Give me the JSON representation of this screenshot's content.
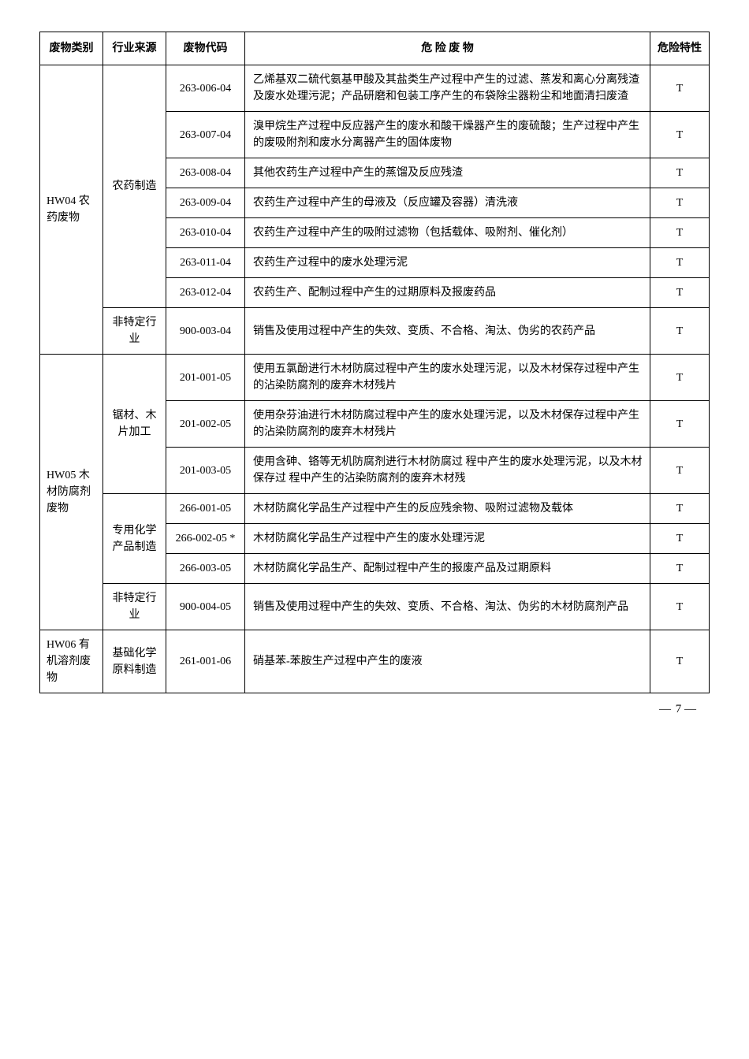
{
  "headers": {
    "category": "废物类别",
    "industry": "行业来源",
    "code": "废物代码",
    "description": "危 险 废 物",
    "hazard": "危险特性"
  },
  "groups": [
    {
      "category": "HW04 农药废物",
      "subgroups": [
        {
          "industry": "农药制造",
          "rows": [
            {
              "code": "263-006-04",
              "desc": "乙烯基双二硫代氨基甲酸及其盐类生产过程中产生的过滤、蒸发和离心分离残渣及废水处理污泥；产品研磨和包装工序产生的布袋除尘器粉尘和地面清扫废渣",
              "hazard": "T"
            },
            {
              "code": "263-007-04",
              "desc": "溴甲烷生产过程中反应器产生的废水和酸干燥器产生的废硫酸；生产过程中产生的废吸附剂和废水分离器产生的固体废物",
              "hazard": "T"
            },
            {
              "code": "263-008-04",
              "desc": "其他农药生产过程中产生的蒸馏及反应残渣",
              "hazard": "T"
            },
            {
              "code": "263-009-04",
              "desc": "农药生产过程中产生的母液及（反应罐及容器）清洗液",
              "hazard": "T"
            },
            {
              "code": "263-010-04",
              "desc": "农药生产过程中产生的吸附过滤物（包括载体、吸附剂、催化剂）",
              "hazard": "T"
            },
            {
              "code": "263-011-04",
              "desc": "农药生产过程中的废水处理污泥",
              "hazard": "T"
            },
            {
              "code": "263-012-04",
              "desc": "农药生产、配制过程中产生的过期原料及报废药品",
              "hazard": "T"
            }
          ]
        },
        {
          "industry": "非特定行业",
          "rows": [
            {
              "code": "900-003-04",
              "desc": "销售及使用过程中产生的失效、变质、不合格、淘汰、伪劣的农药产品",
              "hazard": "T"
            }
          ]
        }
      ]
    },
    {
      "category": "HW05 木材防腐剂废物",
      "subgroups": [
        {
          "industry": "锯材、木片加工",
          "rows": [
            {
              "code": "201-001-05",
              "desc": "使用五氯酚进行木材防腐过程中产生的废水处理污泥，以及木材保存过程中产生的沾染防腐剂的废弃木材残片",
              "hazard": "T"
            },
            {
              "code": "201-002-05",
              "desc": "使用杂芬油进行木材防腐过程中产生的废水处理污泥，以及木材保存过程中产生的沾染防腐剂的废弃木材残片",
              "hazard": "T"
            },
            {
              "code": "201-003-05",
              "desc": "使用含砷、铬等无机防腐剂进行木材防腐过 程中产生的废水处理污泥，以及木材保存过 程中产生的沾染防腐剂的废弃木材残",
              "hazard": "T"
            }
          ]
        },
        {
          "industry": "专用化学产品制造",
          "rows": [
            {
              "code": "266-001-05",
              "desc": "木材防腐化学品生产过程中产生的反应残余物、吸附过滤物及载体",
              "hazard": "T"
            },
            {
              "code": "266-002-05 *",
              "desc": "木材防腐化学品生产过程中产生的废水处理污泥",
              "hazard": "T"
            },
            {
              "code": "266-003-05",
              "desc": "木材防腐化学品生产、配制过程中产生的报废产品及过期原料",
              "hazard": "T"
            }
          ]
        },
        {
          "industry": "非特定行业",
          "rows": [
            {
              "code": "900-004-05",
              "desc": "销售及使用过程中产生的失效、变质、不合格、淘汰、伪劣的木材防腐剂产品",
              "hazard": "T"
            }
          ]
        }
      ]
    },
    {
      "category": "HW06 有机溶剂废物",
      "subgroups": [
        {
          "industry": "基础化学原料制造",
          "rows": [
            {
              "code": "261-001-06",
              "desc": "硝基苯-苯胺生产过程中产生的废液",
              "hazard": "T"
            }
          ]
        }
      ]
    }
  ],
  "page": {
    "left_dash": "—",
    "number": "7",
    "right_dash": "—"
  }
}
